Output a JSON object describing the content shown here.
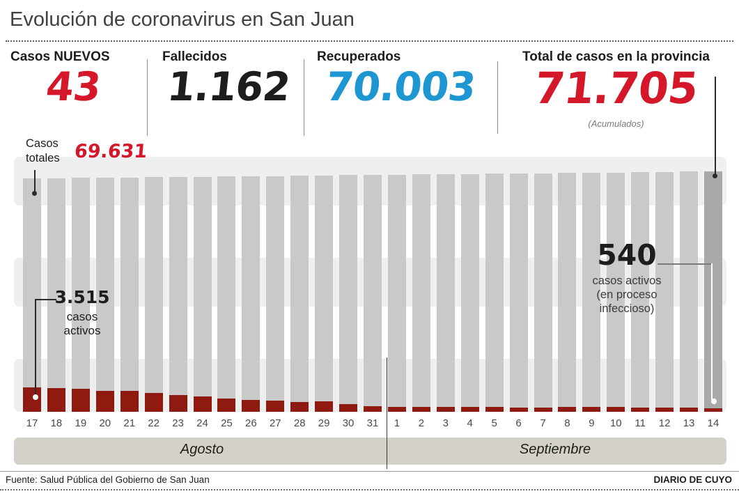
{
  "title": "Evolución de coronavirus en San Juan",
  "stats": [
    {
      "label": "Casos NUEVOS",
      "value": "43"
    },
    {
      "label": "Fallecidos",
      "value": "1.162"
    },
    {
      "label": "Recuperados",
      "value": "70.003"
    },
    {
      "label": "Total de casos en la provincia",
      "value": "71.705",
      "note": "(Acumulados)"
    }
  ],
  "colors": {
    "red_accent": "#d5172a",
    "black_number": "#1d1d1b",
    "blue_number": "#1e96d2",
    "bar_gray": "#c9c9c9",
    "bar_gray_last": "#a9a9a9",
    "bar_red": "#8e1a10",
    "band": "#efefef",
    "month_band": "#d3d1c8"
  },
  "chart_data": {
    "type": "bar",
    "categories": [
      "17",
      "18",
      "19",
      "20",
      "21",
      "22",
      "23",
      "24",
      "25",
      "26",
      "27",
      "28",
      "29",
      "30",
      "31",
      "1",
      "2",
      "3",
      "4",
      "5",
      "6",
      "7",
      "8",
      "9",
      "10",
      "11",
      "12",
      "13",
      "14"
    ],
    "series": [
      {
        "name": "Casos totales",
        "values": [
          69631,
          69705,
          69779,
          69853,
          69927,
          70001,
          70076,
          70150,
          70224,
          70298,
          70372,
          70446,
          70520,
          70594,
          70668,
          70742,
          70817,
          70891,
          70965,
          71039,
          71113,
          71187,
          71261,
          71335,
          71410,
          71484,
          71558,
          71632,
          71705
        ]
      },
      {
        "name": "Casos activos (en proceso infeccioso)",
        "values": [
          3515,
          3400,
          3320,
          3000,
          3050,
          2730,
          2460,
          2200,
          1910,
          1750,
          1580,
          1420,
          1480,
          1090,
          820,
          700,
          690,
          700,
          710,
          700,
          650,
          620,
          680,
          670,
          680,
          640,
          630,
          640,
          540
        ]
      }
    ],
    "labeled_points": {
      "first_total": 69631,
      "last_total": 71705,
      "first_active": 3515,
      "last_active": 540
    },
    "months": [
      {
        "label": "Agosto",
        "day_count": 15
      },
      {
        "label": "Septiembre",
        "day_count": 14
      }
    ],
    "ylim": [
      0,
      71705
    ],
    "grid": false,
    "legend_position": "inline-annotations"
  },
  "callouts": {
    "casos_totales": {
      "label": "Casos\ntotales",
      "value": "69.631"
    },
    "activos_inicio": {
      "value": "3.515",
      "label": "casos\nactivos"
    },
    "activos_fin": {
      "value": "540",
      "label": "casos activos\n(en proceso\ninfeccioso)"
    }
  },
  "footer": {
    "source": "Fuente: Salud Pública del Gobierno de San Juan",
    "credit": "DIARIO DE CUYO"
  }
}
